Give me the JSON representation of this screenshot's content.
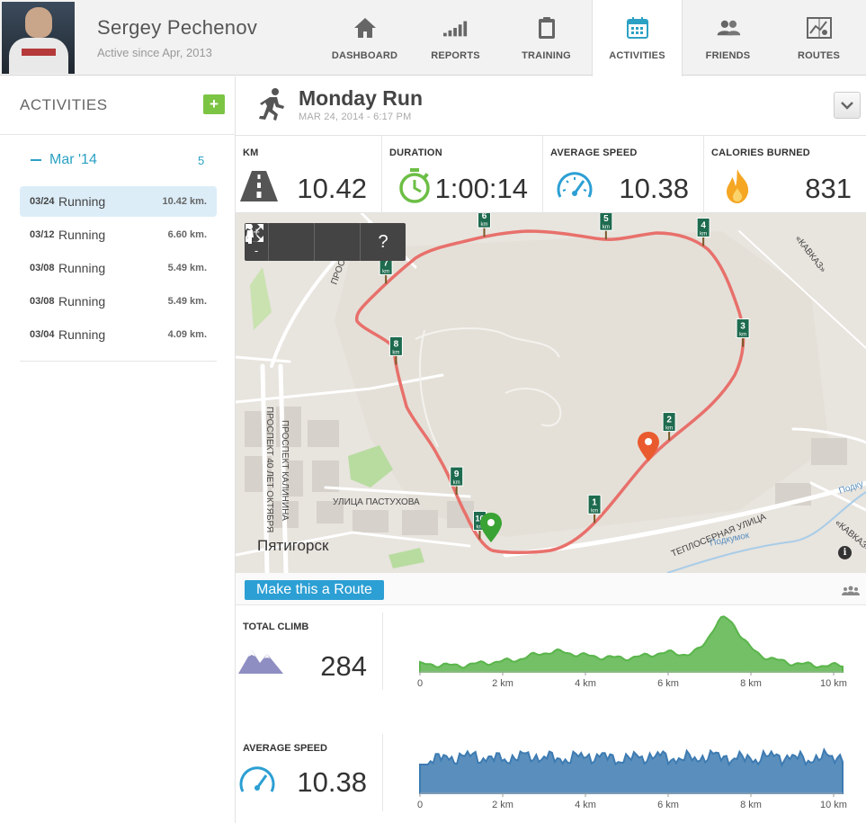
{
  "profile": {
    "name": "Sergey Pechenov",
    "since": "Active since Apr, 2013"
  },
  "nav": [
    {
      "label": "DASHBOARD",
      "icon": "home-icon"
    },
    {
      "label": "REPORTS",
      "icon": "bars-icon"
    },
    {
      "label": "TRAINING",
      "icon": "clipboard-icon"
    },
    {
      "label": "ACTIVITIES",
      "icon": "calendar-icon",
      "active": true
    },
    {
      "label": "FRIENDS",
      "icon": "friends-icon"
    },
    {
      "label": "ROUTES",
      "icon": "map-icon"
    }
  ],
  "sidebar": {
    "title": "ACTIVITIES",
    "add_label": "+",
    "month": "Mar '14",
    "month_count": "5",
    "activities": [
      {
        "date": "03/24",
        "type": "Running",
        "dist": "10.42 km.",
        "selected": true
      },
      {
        "date": "03/12",
        "type": "Running",
        "dist": "6.60 km."
      },
      {
        "date": "03/08",
        "type": "Running",
        "dist": "5.49 km."
      },
      {
        "date": "03/08",
        "type": "Running",
        "dist": "5.49 km."
      },
      {
        "date": "03/04",
        "type": "Running",
        "dist": "4.09 km."
      }
    ]
  },
  "activity": {
    "title": "Monday Run",
    "date": "MAR 24, 2014  -  6:17 PM"
  },
  "stats": {
    "km_label": "KM",
    "km_value": "10.42",
    "duration_label": "DURATION",
    "duration_value": "1:00:14",
    "speed_label": "AVERAGE SPEED",
    "speed_value": "10.38",
    "calories_label": "CALORIES BURNED",
    "calories_value": "831"
  },
  "map": {
    "zoom_in": "+",
    "zoom_out": "-",
    "help": "?",
    "city": "Пятигорск",
    "info": "i",
    "streets": {
      "pastukhova": "УЛИЦА ПАСТУХОВА",
      "prospekt40": "ПРОСПЕКТ 40 ЛЕТ ОКТЯБРЯ",
      "kalinina": "ПРОСПЕКТ КАЛИНИНА",
      "teplosernaya": "ТЕПЛОСЕРНАЯ УЛИЦА",
      "kavkaz": "«КАВКАЗ»",
      "kavkaz2": "«КАВКАЗ»",
      "podkumok": "Подкумок",
      "podkumok2": "Подку",
      "prospekt_short": "ПРОСП"
    },
    "markers": [
      "1",
      "2",
      "3",
      "4",
      "5",
      "6",
      "7",
      "8",
      "9",
      "10"
    ],
    "km_unit": "km",
    "colors": {
      "route": "#e8706b",
      "start": "#3aa335",
      "end": "#ea5a2f"
    }
  },
  "route_button": "Make this a Route",
  "climb": {
    "label": "TOTAL CLIMB",
    "value": "284",
    "ticks": [
      "0",
      "2 km",
      "4 km",
      "6 km",
      "8 km",
      "10 km"
    ],
    "color": "#5ab54b"
  },
  "speed_profile": {
    "label": "AVERAGE SPEED",
    "value": "10.38",
    "ticks": [
      "0",
      "2 km",
      "4 km",
      "6 km",
      "8 km",
      "10 km"
    ],
    "color": "#3d7bb2"
  }
}
